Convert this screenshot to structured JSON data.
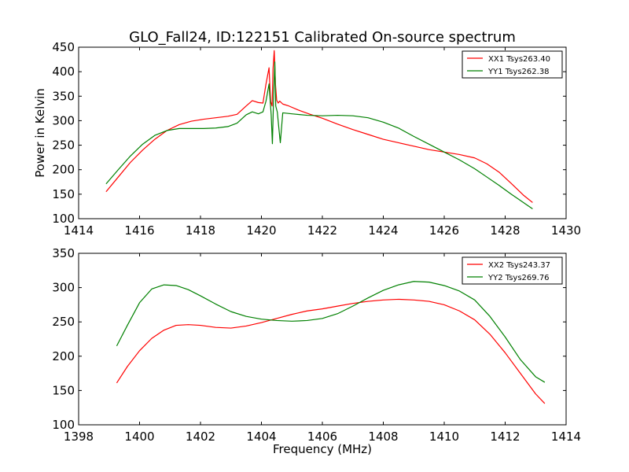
{
  "figure": {
    "title": "GLO_Fall24, ID:122151 Calibrated On-source spectrum",
    "ylabel": "Power in Kelvin",
    "xlabel": "Frequency (MHz)"
  },
  "chart_data": [
    {
      "type": "line",
      "xlim": [
        1414,
        1430
      ],
      "ylim": [
        100,
        450
      ],
      "xticks": [
        1414,
        1416,
        1418,
        1420,
        1422,
        1424,
        1426,
        1428,
        1430
      ],
      "yticks": [
        100,
        150,
        200,
        250,
        300,
        350,
        400,
        450
      ],
      "legend_position": "top-right",
      "grid": false,
      "series": [
        {
          "name": "XX1 Tsys263.40",
          "color": "#ff0000",
          "x": [
            1414.9,
            1415.3,
            1415.7,
            1416.1,
            1416.5,
            1416.9,
            1417.3,
            1417.7,
            1418.1,
            1418.5,
            1418.9,
            1419.2,
            1419.5,
            1419.7,
            1419.9,
            1420.05,
            1420.15,
            1420.25,
            1420.3,
            1420.35,
            1420.38,
            1420.42,
            1420.46,
            1420.5,
            1420.55,
            1420.6,
            1420.7,
            1420.9,
            1421.2,
            1421.6,
            1422.0,
            1422.5,
            1423.0,
            1423.5,
            1424.0,
            1424.5,
            1425.0,
            1425.5,
            1426.0,
            1426.5,
            1427.0,
            1427.4,
            1427.8,
            1428.2,
            1428.6,
            1428.9
          ],
          "y": [
            155,
            185,
            215,
            240,
            262,
            280,
            292,
            299,
            303,
            306,
            309,
            313,
            330,
            341,
            337,
            336,
            375,
            408,
            340,
            330,
            405,
            443,
            375,
            342,
            336,
            340,
            334,
            330,
            322,
            313,
            305,
            293,
            282,
            272,
            262,
            255,
            248,
            241,
            236,
            231,
            224,
            212,
            195,
            172,
            148,
            133
          ]
        },
        {
          "name": "YY1 Tsys262.38",
          "color": "#008000",
          "x": [
            1414.9,
            1415.3,
            1415.7,
            1416.1,
            1416.5,
            1416.9,
            1417.3,
            1417.7,
            1418.1,
            1418.5,
            1418.9,
            1419.2,
            1419.5,
            1419.7,
            1419.9,
            1420.05,
            1420.15,
            1420.25,
            1420.32,
            1420.36,
            1420.4,
            1420.44,
            1420.47,
            1420.52,
            1420.58,
            1420.62,
            1420.7,
            1421.0,
            1421.5,
            1422.0,
            1422.5,
            1423.0,
            1423.5,
            1424.0,
            1424.5,
            1425.0,
            1425.5,
            1426.0,
            1426.5,
            1427.0,
            1427.4,
            1427.8,
            1428.2,
            1428.6,
            1428.9
          ],
          "y": [
            171,
            200,
            228,
            252,
            270,
            280,
            284,
            284,
            284,
            285,
            288,
            295,
            312,
            318,
            314,
            318,
            340,
            375,
            312,
            253,
            350,
            420,
            330,
            318,
            280,
            255,
            316,
            314,
            311,
            310,
            311,
            310,
            306,
            297,
            285,
            268,
            252,
            236,
            220,
            202,
            185,
            168,
            150,
            133,
            120
          ]
        }
      ]
    },
    {
      "type": "line",
      "xlim": [
        1398,
        1414
      ],
      "ylim": [
        100,
        350
      ],
      "xticks": [
        1398,
        1400,
        1402,
        1404,
        1406,
        1408,
        1410,
        1412,
        1414
      ],
      "yticks": [
        100,
        150,
        200,
        250,
        300,
        350
      ],
      "legend_position": "top-right",
      "grid": false,
      "series": [
        {
          "name": "XX2 Tsys243.37",
          "color": "#ff0000",
          "x": [
            1399.25,
            1399.6,
            1400.0,
            1400.4,
            1400.8,
            1401.2,
            1401.6,
            1402.0,
            1402.5,
            1403.0,
            1403.5,
            1404.0,
            1404.5,
            1405.0,
            1405.5,
            1406.0,
            1406.5,
            1407.0,
            1407.5,
            1408.0,
            1408.5,
            1409.0,
            1409.5,
            1410.0,
            1410.5,
            1411.0,
            1411.5,
            1412.0,
            1412.5,
            1413.0,
            1413.3
          ],
          "y": [
            161,
            185,
            208,
            226,
            238,
            245,
            246,
            245,
            242,
            241,
            244,
            249,
            255,
            261,
            266,
            269,
            273,
            277,
            280,
            282,
            283,
            282,
            280,
            275,
            266,
            253,
            232,
            205,
            175,
            145,
            131
          ]
        },
        {
          "name": "YY2 Tsys269.76",
          "color": "#008000",
          "x": [
            1399.25,
            1399.6,
            1400.0,
            1400.4,
            1400.8,
            1401.2,
            1401.6,
            1402.0,
            1402.5,
            1403.0,
            1403.5,
            1404.0,
            1404.5,
            1405.0,
            1405.5,
            1406.0,
            1406.5,
            1407.0,
            1407.5,
            1408.0,
            1408.5,
            1409.0,
            1409.5,
            1410.0,
            1410.5,
            1411.0,
            1411.5,
            1412.0,
            1412.5,
            1413.0,
            1413.3
          ],
          "y": [
            215,
            245,
            278,
            298,
            304,
            303,
            297,
            288,
            276,
            265,
            258,
            254,
            252,
            251,
            252,
            255,
            262,
            273,
            285,
            296,
            304,
            309,
            308,
            303,
            295,
            282,
            258,
            228,
            195,
            170,
            162
          ]
        }
      ]
    }
  ]
}
